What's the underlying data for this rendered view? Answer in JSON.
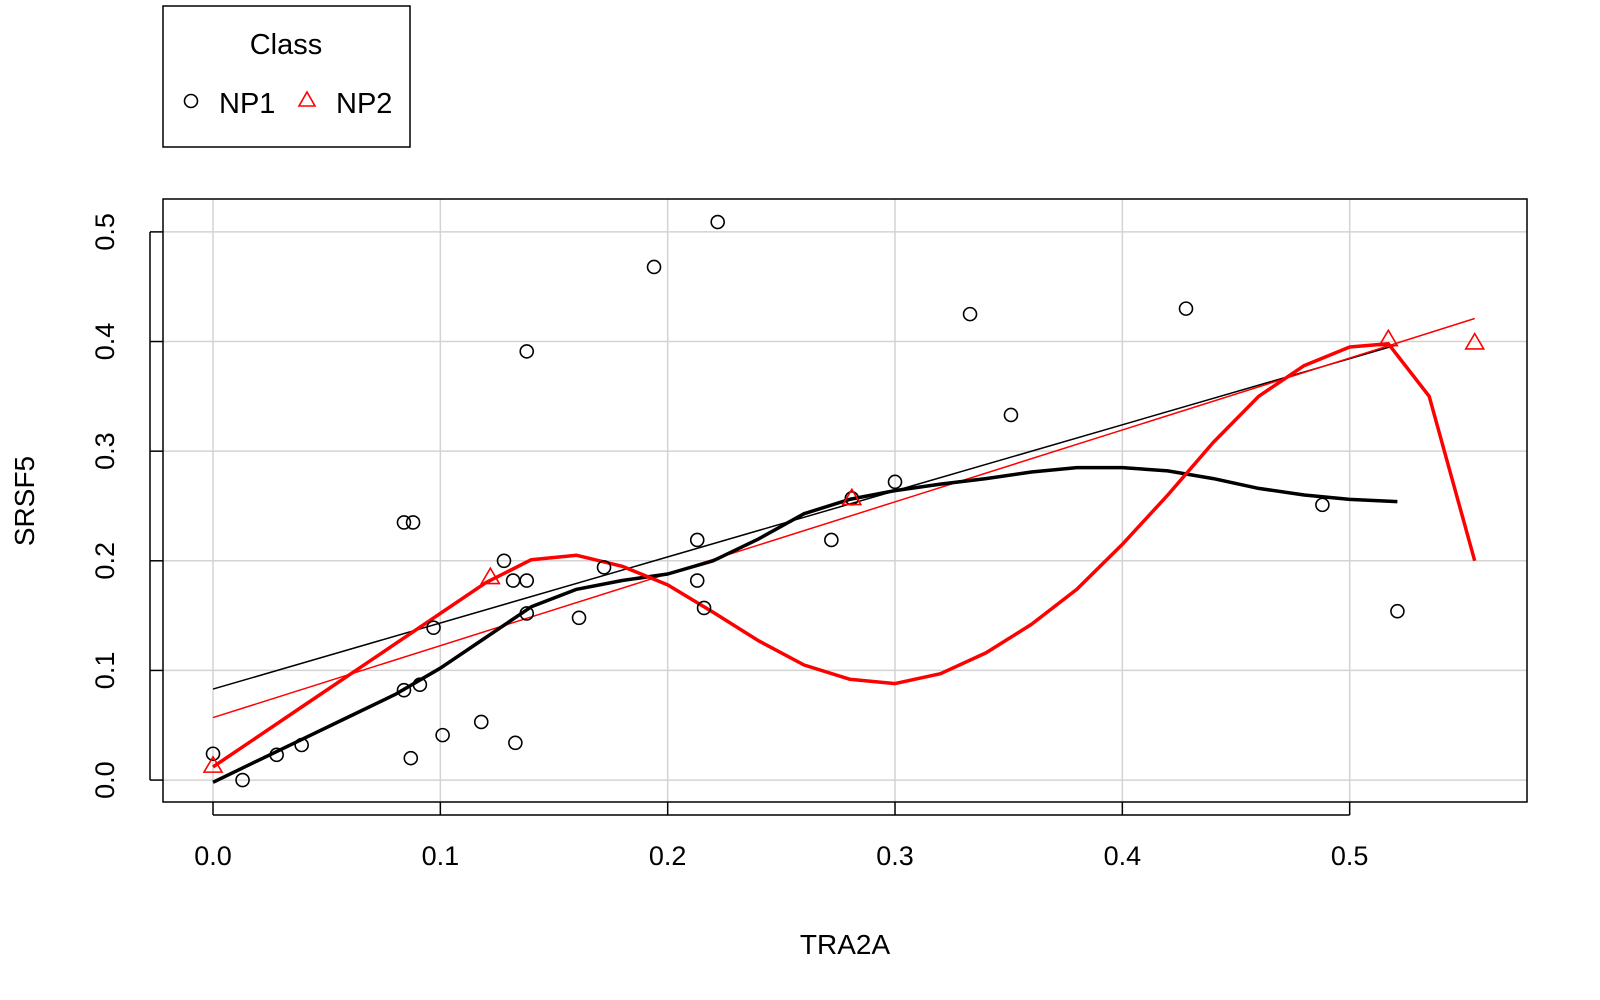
{
  "chart_data": {
    "type": "scatter",
    "title": "",
    "xlabel": "TRA2A",
    "ylabel": "SRSF5",
    "xlim": [
      -0.022,
      0.578
    ],
    "ylim": [
      -0.02,
      0.53
    ],
    "x_ticks": [
      "0.0",
      "0.1",
      "0.2",
      "0.3",
      "0.4",
      "0.5"
    ],
    "y_ticks": [
      "0.0",
      "0.1",
      "0.2",
      "0.3",
      "0.4",
      "0.5"
    ],
    "grid": true,
    "legend": {
      "title": "Class",
      "position": "top-left",
      "entries": [
        {
          "label": "NP1",
          "marker": "circle",
          "color": "#000000"
        },
        {
          "label": "NP2",
          "marker": "triangle",
          "color": "#ff0000"
        }
      ]
    },
    "series": [
      {
        "name": "NP1",
        "color": "#000000",
        "marker": "circle",
        "points": [
          [
            0.0,
            0.024
          ],
          [
            0.013,
            0.0
          ],
          [
            0.028,
            0.023
          ],
          [
            0.039,
            0.032
          ],
          [
            0.084,
            0.082
          ],
          [
            0.084,
            0.235
          ],
          [
            0.088,
            0.235
          ],
          [
            0.087,
            0.02
          ],
          [
            0.091,
            0.087
          ],
          [
            0.097,
            0.139
          ],
          [
            0.101,
            0.041
          ],
          [
            0.118,
            0.053
          ],
          [
            0.128,
            0.2
          ],
          [
            0.132,
            0.182
          ],
          [
            0.133,
            0.034
          ],
          [
            0.138,
            0.182
          ],
          [
            0.138,
            0.152
          ],
          [
            0.138,
            0.391
          ],
          [
            0.161,
            0.148
          ],
          [
            0.172,
            0.194
          ],
          [
            0.194,
            0.468
          ],
          [
            0.213,
            0.219
          ],
          [
            0.213,
            0.182
          ],
          [
            0.216,
            0.157
          ],
          [
            0.222,
            0.509
          ],
          [
            0.272,
            0.219
          ],
          [
            0.281,
            0.257
          ],
          [
            0.3,
            0.272
          ],
          [
            0.333,
            0.425
          ],
          [
            0.351,
            0.333
          ],
          [
            0.428,
            0.43
          ],
          [
            0.488,
            0.251
          ],
          [
            0.521,
            0.154
          ]
        ],
        "fit_line": [
          [
            0.0,
            0.083
          ],
          [
            0.521,
            0.397
          ]
        ],
        "smooth_curve": [
          [
            0.0,
            -0.002
          ],
          [
            0.02,
            0.018
          ],
          [
            0.04,
            0.038
          ],
          [
            0.06,
            0.058
          ],
          [
            0.08,
            0.078
          ],
          [
            0.1,
            0.102
          ],
          [
            0.12,
            0.13
          ],
          [
            0.14,
            0.158
          ],
          [
            0.16,
            0.174
          ],
          [
            0.18,
            0.182
          ],
          [
            0.2,
            0.188
          ],
          [
            0.22,
            0.2
          ],
          [
            0.24,
            0.22
          ],
          [
            0.26,
            0.243
          ],
          [
            0.28,
            0.256
          ],
          [
            0.3,
            0.264
          ],
          [
            0.32,
            0.27
          ],
          [
            0.34,
            0.275
          ],
          [
            0.36,
            0.281
          ],
          [
            0.38,
            0.285
          ],
          [
            0.4,
            0.285
          ],
          [
            0.42,
            0.282
          ],
          [
            0.44,
            0.275
          ],
          [
            0.46,
            0.266
          ],
          [
            0.48,
            0.26
          ],
          [
            0.5,
            0.256
          ],
          [
            0.521,
            0.254
          ]
        ]
      },
      {
        "name": "NP2",
        "color": "#ff0000",
        "marker": "triangle",
        "points": [
          [
            0.0,
            0.013
          ],
          [
            0.122,
            0.185
          ],
          [
            0.281,
            0.257
          ],
          [
            0.517,
            0.402
          ],
          [
            0.555,
            0.399
          ]
        ],
        "fit_line": [
          [
            0.0,
            0.057
          ],
          [
            0.555,
            0.421
          ]
        ],
        "smooth_curve": [
          [
            0.0,
            0.012
          ],
          [
            0.02,
            0.04
          ],
          [
            0.04,
            0.068
          ],
          [
            0.06,
            0.096
          ],
          [
            0.08,
            0.124
          ],
          [
            0.1,
            0.152
          ],
          [
            0.12,
            0.18
          ],
          [
            0.14,
            0.201
          ],
          [
            0.16,
            0.205
          ],
          [
            0.18,
            0.195
          ],
          [
            0.2,
            0.178
          ],
          [
            0.22,
            0.153
          ],
          [
            0.24,
            0.127
          ],
          [
            0.26,
            0.105
          ],
          [
            0.28,
            0.092
          ],
          [
            0.3,
            0.088
          ],
          [
            0.32,
            0.097
          ],
          [
            0.34,
            0.116
          ],
          [
            0.36,
            0.142
          ],
          [
            0.38,
            0.174
          ],
          [
            0.4,
            0.215
          ],
          [
            0.42,
            0.26
          ],
          [
            0.44,
            0.308
          ],
          [
            0.46,
            0.35
          ],
          [
            0.48,
            0.378
          ],
          [
            0.5,
            0.395
          ],
          [
            0.517,
            0.398
          ],
          [
            0.535,
            0.35
          ],
          [
            0.555,
            0.2
          ]
        ]
      }
    ]
  }
}
